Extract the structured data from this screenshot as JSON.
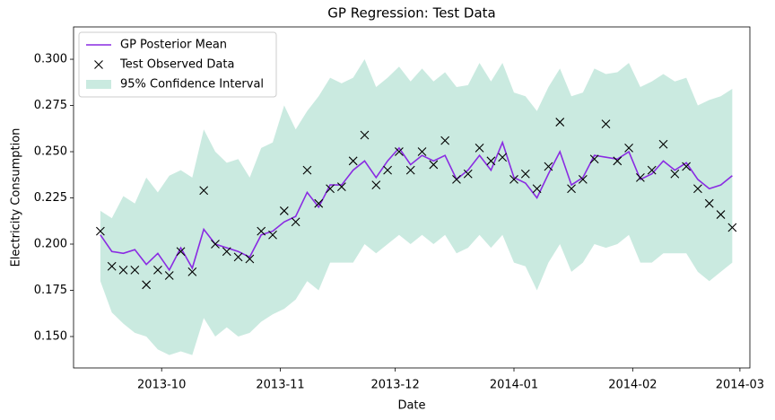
{
  "chart_data": {
    "type": "line",
    "title": "GP Regression: Test Data",
    "x_label": "Date",
    "y_label": "Electricity Consumption",
    "x": [
      15963,
      15966,
      15969,
      15972,
      15975,
      15978,
      15981,
      15984,
      15987,
      15990,
      15993,
      15996,
      15999,
      16002,
      16005,
      16008,
      16011,
      16014,
      16017,
      16020,
      16023,
      16026,
      16029,
      16032,
      16035,
      16038,
      16041,
      16044,
      16047,
      16050,
      16053,
      16056,
      16059,
      16062,
      16065,
      16068,
      16071,
      16074,
      16077,
      16080,
      16083,
      16086,
      16089,
      16092,
      16095,
      16098,
      16101,
      16104,
      16107,
      16110,
      16113,
      16116,
      16119,
      16122,
      16125,
      16128
    ],
    "series": [
      {
        "name": "95% Confidence Interval",
        "type": "band",
        "color": "#66c2a5",
        "lower": [
          0.18,
          0.163,
          0.157,
          0.152,
          0.15,
          0.143,
          0.14,
          0.142,
          0.14,
          0.16,
          0.15,
          0.155,
          0.15,
          0.152,
          0.158,
          0.162,
          0.165,
          0.17,
          0.18,
          0.175,
          0.19,
          0.19,
          0.19,
          0.2,
          0.195,
          0.2,
          0.205,
          0.2,
          0.205,
          0.2,
          0.205,
          0.195,
          0.198,
          0.205,
          0.198,
          0.205,
          0.19,
          0.188,
          0.175,
          0.19,
          0.2,
          0.185,
          0.19,
          0.2,
          0.198,
          0.2,
          0.205,
          0.19,
          0.19,
          0.195,
          0.195,
          0.195,
          0.185,
          0.18,
          0.185,
          0.19
        ],
        "upper": [
          0.218,
          0.214,
          0.226,
          0.222,
          0.236,
          0.228,
          0.237,
          0.24,
          0.236,
          0.262,
          0.25,
          0.244,
          0.246,
          0.236,
          0.252,
          0.255,
          0.275,
          0.262,
          0.272,
          0.28,
          0.29,
          0.287,
          0.29,
          0.3,
          0.285,
          0.29,
          0.296,
          0.288,
          0.295,
          0.288,
          0.293,
          0.285,
          0.286,
          0.298,
          0.288,
          0.298,
          0.282,
          0.28,
          0.272,
          0.285,
          0.295,
          0.28,
          0.282,
          0.295,
          0.292,
          0.293,
          0.298,
          0.285,
          0.288,
          0.292,
          0.288,
          0.29,
          0.275,
          0.278,
          0.28,
          0.284
        ]
      },
      {
        "name": "GP Posterior Mean",
        "type": "line",
        "color": "#8a2be2",
        "values": [
          0.205,
          0.196,
          0.195,
          0.197,
          0.189,
          0.195,
          0.186,
          0.198,
          0.187,
          0.208,
          0.2,
          0.198,
          0.196,
          0.193,
          0.205,
          0.207,
          0.212,
          0.215,
          0.228,
          0.22,
          0.232,
          0.232,
          0.24,
          0.245,
          0.236,
          0.245,
          0.252,
          0.243,
          0.248,
          0.245,
          0.248,
          0.235,
          0.24,
          0.248,
          0.24,
          0.255,
          0.236,
          0.233,
          0.225,
          0.238,
          0.25,
          0.232,
          0.236,
          0.248,
          0.247,
          0.246,
          0.25,
          0.235,
          0.238,
          0.245,
          0.24,
          0.244,
          0.235,
          0.23,
          0.232,
          0.237
        ]
      },
      {
        "name": "Test Observed Data",
        "type": "scatter",
        "marker": "x",
        "color": "#000000",
        "values": [
          0.207,
          0.188,
          0.186,
          0.186,
          0.178,
          0.186,
          0.183,
          0.196,
          0.185,
          0.229,
          0.2,
          0.196,
          0.193,
          0.192,
          0.207,
          0.205,
          0.218,
          0.212,
          0.24,
          0.222,
          0.23,
          0.231,
          0.245,
          0.259,
          0.232,
          0.24,
          0.25,
          0.24,
          0.25,
          0.243,
          0.256,
          0.235,
          0.238,
          0.252,
          0.245,
          0.247,
          0.235,
          0.238,
          0.23,
          0.242,
          0.266,
          0.23,
          0.235,
          0.246,
          0.265,
          0.245,
          0.252,
          0.236,
          0.24,
          0.254,
          0.238,
          0.242,
          0.23,
          0.222,
          0.216,
          0.209
        ]
      }
    ],
    "legend_order": [
      1,
      2,
      0
    ],
    "legend": "upper left",
    "xlim": [
      15956,
      16132.6
    ],
    "xticks": [
      {
        "value": 15979,
        "label": "2013-10"
      },
      {
        "value": 16010,
        "label": "2013-11"
      },
      {
        "value": 16040,
        "label": "2013-12"
      },
      {
        "value": 16071,
        "label": "2014-01"
      },
      {
        "value": 16102,
        "label": "2014-02"
      },
      {
        "value": 16130,
        "label": "2014-03"
      }
    ],
    "ylim": [
      0.133,
      0.3175
    ],
    "yticks": [
      {
        "value": 0.15,
        "label": "0.150"
      },
      0.175,
      {
        "value": 0.2,
        "label": "0.200"
      },
      0.225,
      {
        "value": 0.25,
        "label": "0.250"
      },
      0.275,
      {
        "value": 0.3,
        "label": "0.300"
      }
    ],
    "grid": false
  }
}
